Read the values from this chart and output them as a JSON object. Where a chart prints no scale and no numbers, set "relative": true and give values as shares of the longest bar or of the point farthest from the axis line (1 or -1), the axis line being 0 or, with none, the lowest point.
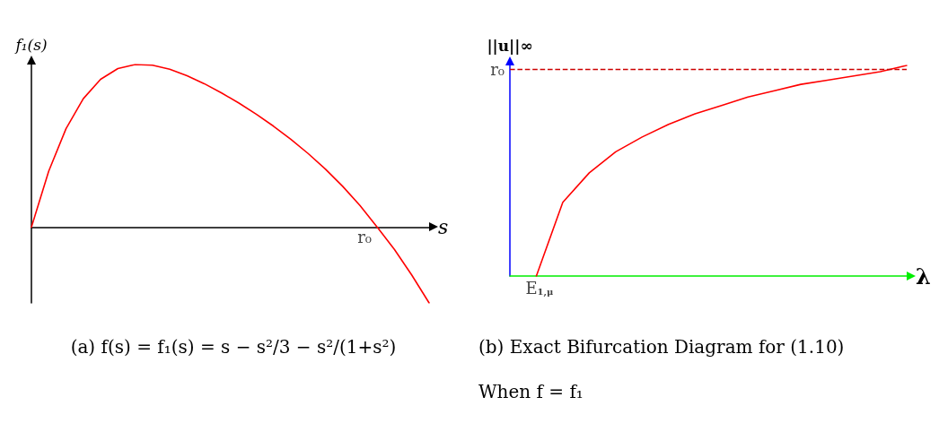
{
  "chart_data": [
    {
      "type": "line",
      "title": "(a) f(s) = f₁(s) = s − s²/3 − s²/(1+s²)",
      "xlabel": "s",
      "ylabel": "f₁(s)",
      "relative": true,
      "grid": false,
      "marker": "none",
      "annotations": [
        "r₀"
      ],
      "categories": [
        null,
        null,
        null,
        null,
        null,
        null,
        null,
        null,
        null,
        null,
        null,
        null,
        null,
        null,
        null,
        null,
        null,
        null,
        null,
        null,
        null,
        null,
        null,
        null
      ],
      "series": [
        {
          "color": "#ff0000",
          "values": [
            0,
            0.344,
            0.605,
            0.79,
            0.909,
            0.975,
            1,
            0.996,
            0.971,
            0.931,
            0.882,
            0.825,
            0.763,
            0.695,
            0.621,
            0.541,
            0.453,
            0.357,
            0.251,
            0.133,
            0,
            -0.138,
            -0.295,
            -0.466
          ]
        }
      ]
    },
    {
      "type": "line",
      "title": "(b) Exact Bifurcation Diagram for (1.10)",
      "subtitle": "When f = f₁",
      "xlabel": "λ",
      "ylabel": "||u||∞",
      "relative": true,
      "grid": false,
      "marker": "none",
      "annotations": [
        "E$_{1,μ}$"
      ],
      "categories": [
        null,
        null,
        null,
        null,
        null,
        null,
        null,
        null,
        null,
        null,
        null,
        null,
        null,
        null,
        null,
        null
      ],
      "series": [
        {
          "color": "#ff0000",
          "values": [
            null,
            0,
            0.35,
            0.49,
            0.59,
            0.66,
            0.72,
            0.77,
            0.81,
            0.85,
            0.88,
            0.91,
            0.93,
            0.95,
            0.97,
            1
          ]
        }
      ],
      "ref_lines": [
        {
          "axis": "y",
          "value": 0.98,
          "label": "r₀",
          "color": "#cc0000",
          "line_style": "dashed"
        }
      ]
    }
  ]
}
